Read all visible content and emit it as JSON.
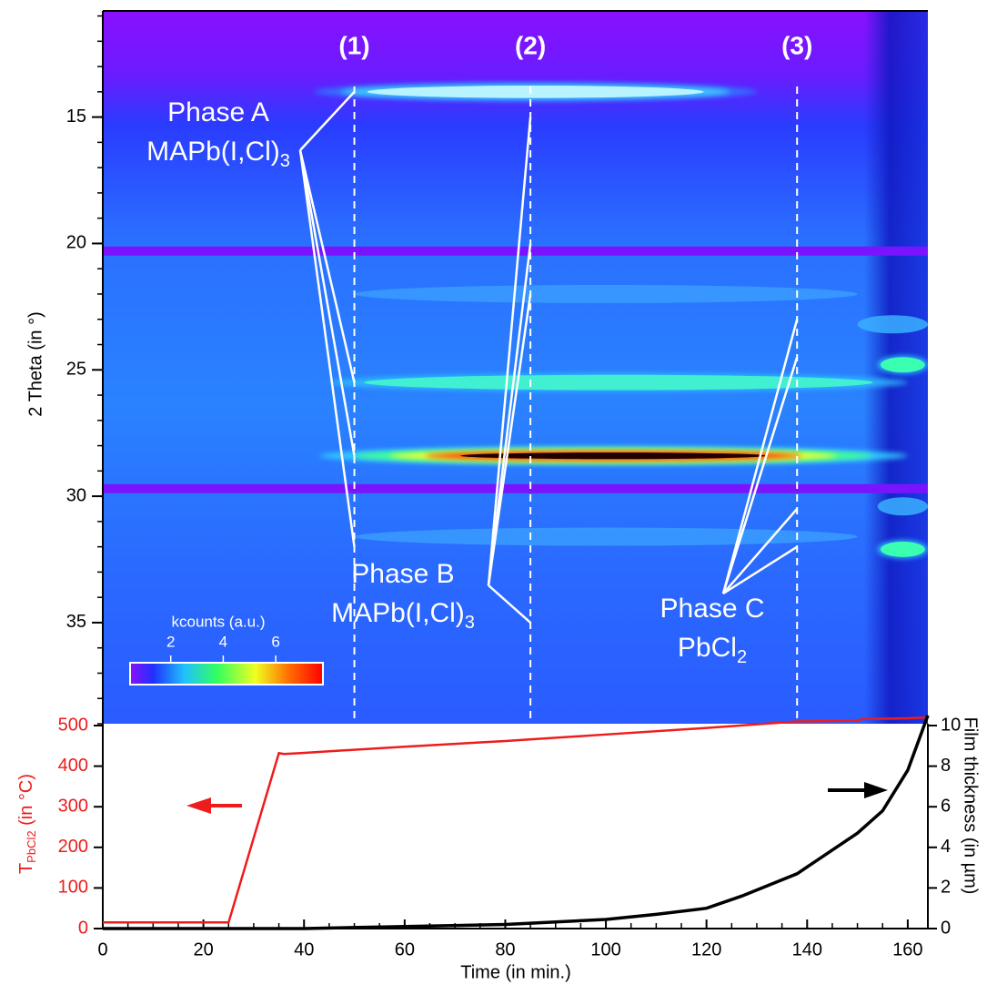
{
  "chart_data": [
    {
      "type": "heatmap",
      "ylabel": "2 Theta (in °)",
      "ylim": [
        10.8,
        39
      ],
      "yticks": [
        15,
        20,
        25,
        30,
        35
      ],
      "xlim": [
        0,
        164
      ],
      "colorbar": {
        "label": "kcounts (a.u.)",
        "lim": [
          0.45,
          7.8
        ],
        "ticks": [
          2,
          4,
          6
        ]
      },
      "gaps": [
        20.3,
        29.7
      ],
      "streaks": [
        {
          "theta": 14.0,
          "t": [
            42,
            130
          ],
          "colors": [
            "#2f7dff",
            "#3fc8ff",
            "#b8f4ff"
          ]
        },
        {
          "theta": 22.0,
          "t": [
            50,
            150
          ],
          "colors": [
            "#3a9cff"
          ]
        },
        {
          "theta": 23.2,
          "t": [
            150,
            164
          ],
          "colors": [
            "#3ab0ff"
          ]
        },
        {
          "theta": 24.8,
          "t": [
            154,
            164
          ],
          "colors": [
            "#2fd0ff",
            "#3affb0"
          ]
        },
        {
          "theta": 25.5,
          "t": [
            45,
            160
          ],
          "colors": [
            "#2fc0ff",
            "#40f0d0"
          ]
        },
        {
          "theta": 28.4,
          "t": [
            43,
            160
          ],
          "colors": [
            "#30d8ff",
            "#40ff90",
            "#f0ff30",
            "#ff3a00",
            "#200000"
          ]
        },
        {
          "theta": 30.4,
          "t": [
            154,
            164
          ],
          "colors": [
            "#3ab0ff"
          ]
        },
        {
          "theta": 31.6,
          "t": [
            50,
            150
          ],
          "colors": [
            "#3a9cff"
          ]
        },
        {
          "theta": 32.1,
          "t": [
            154,
            164
          ],
          "colors": [
            "#2fd0ff",
            "#3affb0"
          ]
        }
      ],
      "markers": [
        {
          "label": "(1)",
          "x": 50
        },
        {
          "label": "(2)",
          "x": 85
        },
        {
          "label": "(3)",
          "x": 138
        }
      ],
      "phases": [
        {
          "lines": [
            {
              "text": "Phase A"
            },
            {
              "text": "MAPb(I,Cl)",
              "sub": "3"
            }
          ],
          "points": [
            [
              50,
              14.0
            ],
            [
              50,
              25.5
            ],
            [
              50,
              28.4
            ],
            [
              50,
              32.0
            ]
          ]
        },
        {
          "lines": [
            {
              "text": "Phase B"
            },
            {
              "text": "MAPb(I,Cl)",
              "sub": "3"
            }
          ],
          "points": [
            [
              85,
              15.0
            ],
            [
              85,
              20.0
            ],
            [
              85,
              22.0
            ],
            [
              85,
              35.0
            ]
          ]
        },
        {
          "lines": [
            {
              "text": "Phase C"
            },
            {
              "text": "PbCl",
              "sub": "2"
            }
          ],
          "points": [
            [
              138,
              23.0
            ],
            [
              138,
              24.5
            ],
            [
              138,
              30.5
            ],
            [
              138,
              32.0
            ]
          ]
        }
      ]
    },
    {
      "type": "line",
      "xlabel": "Time (in min.)",
      "xlim": [
        0,
        164
      ],
      "xticks": [
        0,
        20,
        40,
        60,
        80,
        100,
        120,
        140,
        160
      ],
      "ylabel": {
        "main": "T",
        "sub": "PbCl2",
        "rest": " (in °C)"
      },
      "ylim": [
        0,
        500
      ],
      "yticks": [
        0,
        100,
        200,
        300,
        400,
        500
      ],
      "y2label": "Film thickness (in µm)",
      "y2lim": [
        0,
        10
      ],
      "y2ticks": [
        0,
        2,
        4,
        6,
        8,
        10
      ],
      "series": [
        {
          "color": "#ee1c1c",
          "x": [
            0,
            25,
            35,
            36,
            39,
            60,
            80,
            100,
            120,
            138,
            150,
            151,
            160,
            164
          ],
          "values": [
            15,
            15,
            432,
            430,
            432,
            448,
            462,
            478,
            494,
            510,
            512,
            516,
            518,
            520
          ]
        },
        {
          "color": "#000000",
          "axis": "y2",
          "x": [
            0,
            40,
            60,
            80,
            100,
            110,
            120,
            127,
            138,
            150,
            155,
            160,
            164
          ],
          "values": [
            0,
            0,
            0.1,
            0.2,
            0.45,
            0.7,
            1.0,
            1.6,
            2.7,
            4.7,
            5.8,
            7.8,
            10.5
          ]
        }
      ]
    }
  ]
}
